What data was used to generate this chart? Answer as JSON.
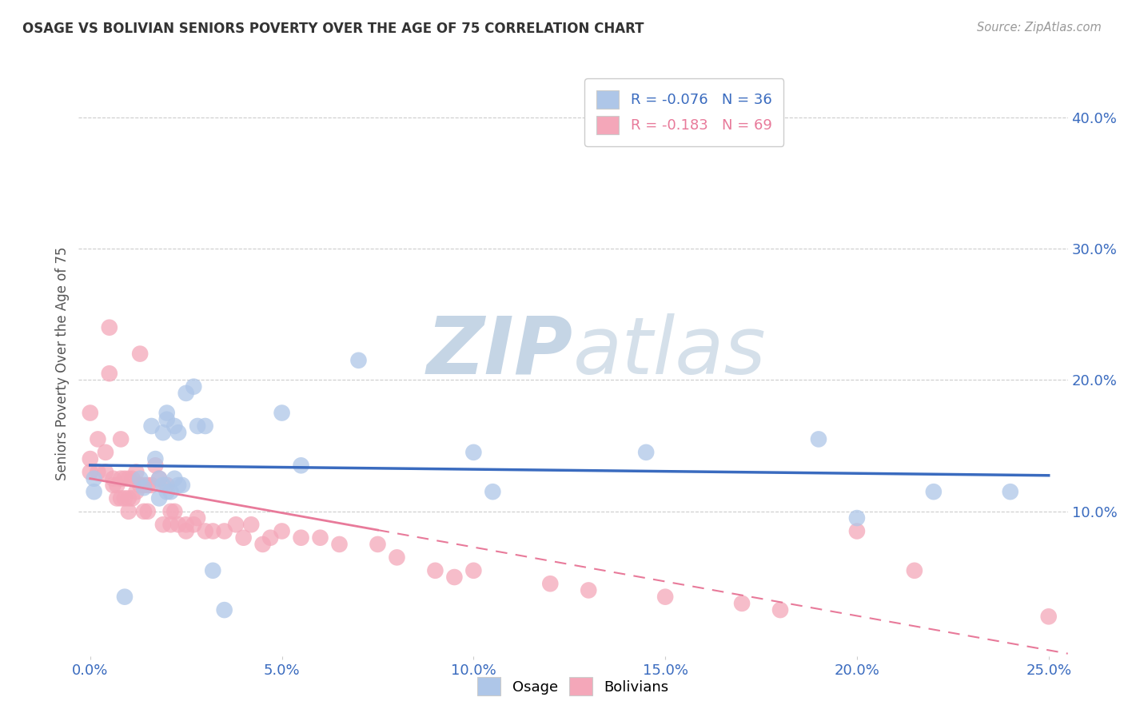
{
  "title": "OSAGE VS BOLIVIAN SENIORS POVERTY OVER THE AGE OF 75 CORRELATION CHART",
  "source": "Source: ZipAtlas.com",
  "ylabel": "Seniors Poverty Over the Age of 75",
  "xlabel_ticks": [
    "0.0%",
    "5.0%",
    "10.0%",
    "15.0%",
    "20.0%",
    "25.0%"
  ],
  "xlabel_vals": [
    0.0,
    0.05,
    0.1,
    0.15,
    0.2,
    0.25
  ],
  "ylabel_ticks": [
    "10.0%",
    "20.0%",
    "30.0%",
    "40.0%"
  ],
  "ylabel_vals": [
    0.1,
    0.2,
    0.3,
    0.4
  ],
  "xlim": [
    -0.003,
    0.255
  ],
  "ylim": [
    -0.01,
    0.435
  ],
  "osage_R": -0.076,
  "osage_N": 36,
  "bolivians_R": -0.183,
  "bolivians_N": 69,
  "osage_color": "#aec6e8",
  "bolivians_color": "#f4a7b9",
  "osage_line_color": "#3a6bbf",
  "bolivians_line_color": "#e87a9a",
  "watermark_color": "#c8d8e8",
  "osage_points_x": [
    0.001,
    0.001,
    0.009,
    0.013,
    0.014,
    0.016,
    0.017,
    0.018,
    0.018,
    0.019,
    0.019,
    0.02,
    0.02,
    0.02,
    0.021,
    0.022,
    0.022,
    0.023,
    0.023,
    0.024,
    0.025,
    0.027,
    0.028,
    0.03,
    0.032,
    0.035,
    0.05,
    0.055,
    0.07,
    0.1,
    0.105,
    0.145,
    0.19,
    0.2,
    0.22,
    0.24
  ],
  "osage_points_y": [
    0.125,
    0.115,
    0.035,
    0.125,
    0.118,
    0.165,
    0.14,
    0.11,
    0.125,
    0.16,
    0.12,
    0.17,
    0.175,
    0.115,
    0.115,
    0.165,
    0.125,
    0.16,
    0.12,
    0.12,
    0.19,
    0.195,
    0.165,
    0.165,
    0.055,
    0.025,
    0.175,
    0.135,
    0.215,
    0.145,
    0.115,
    0.145,
    0.155,
    0.095,
    0.115,
    0.115
  ],
  "bolivians_points_x": [
    0.0,
    0.0,
    0.0,
    0.002,
    0.002,
    0.004,
    0.004,
    0.005,
    0.005,
    0.006,
    0.006,
    0.007,
    0.007,
    0.008,
    0.008,
    0.008,
    0.009,
    0.009,
    0.01,
    0.01,
    0.01,
    0.011,
    0.011,
    0.012,
    0.012,
    0.013,
    0.013,
    0.014,
    0.014,
    0.015,
    0.015,
    0.016,
    0.017,
    0.018,
    0.019,
    0.02,
    0.021,
    0.021,
    0.022,
    0.023,
    0.025,
    0.025,
    0.027,
    0.028,
    0.03,
    0.032,
    0.035,
    0.038,
    0.04,
    0.042,
    0.045,
    0.047,
    0.05,
    0.055,
    0.06,
    0.065,
    0.075,
    0.08,
    0.09,
    0.095,
    0.1,
    0.12,
    0.13,
    0.15,
    0.17,
    0.18,
    0.2,
    0.215,
    0.25
  ],
  "bolivians_points_y": [
    0.175,
    0.14,
    0.13,
    0.155,
    0.13,
    0.145,
    0.13,
    0.24,
    0.205,
    0.125,
    0.12,
    0.12,
    0.11,
    0.155,
    0.125,
    0.11,
    0.125,
    0.11,
    0.125,
    0.11,
    0.1,
    0.125,
    0.11,
    0.13,
    0.115,
    0.22,
    0.12,
    0.12,
    0.1,
    0.12,
    0.1,
    0.12,
    0.135,
    0.125,
    0.09,
    0.12,
    0.1,
    0.09,
    0.1,
    0.09,
    0.09,
    0.085,
    0.09,
    0.095,
    0.085,
    0.085,
    0.085,
    0.09,
    0.08,
    0.09,
    0.075,
    0.08,
    0.085,
    0.08,
    0.08,
    0.075,
    0.075,
    0.065,
    0.055,
    0.05,
    0.055,
    0.045,
    0.04,
    0.035,
    0.03,
    0.025,
    0.085,
    0.055,
    0.02
  ]
}
